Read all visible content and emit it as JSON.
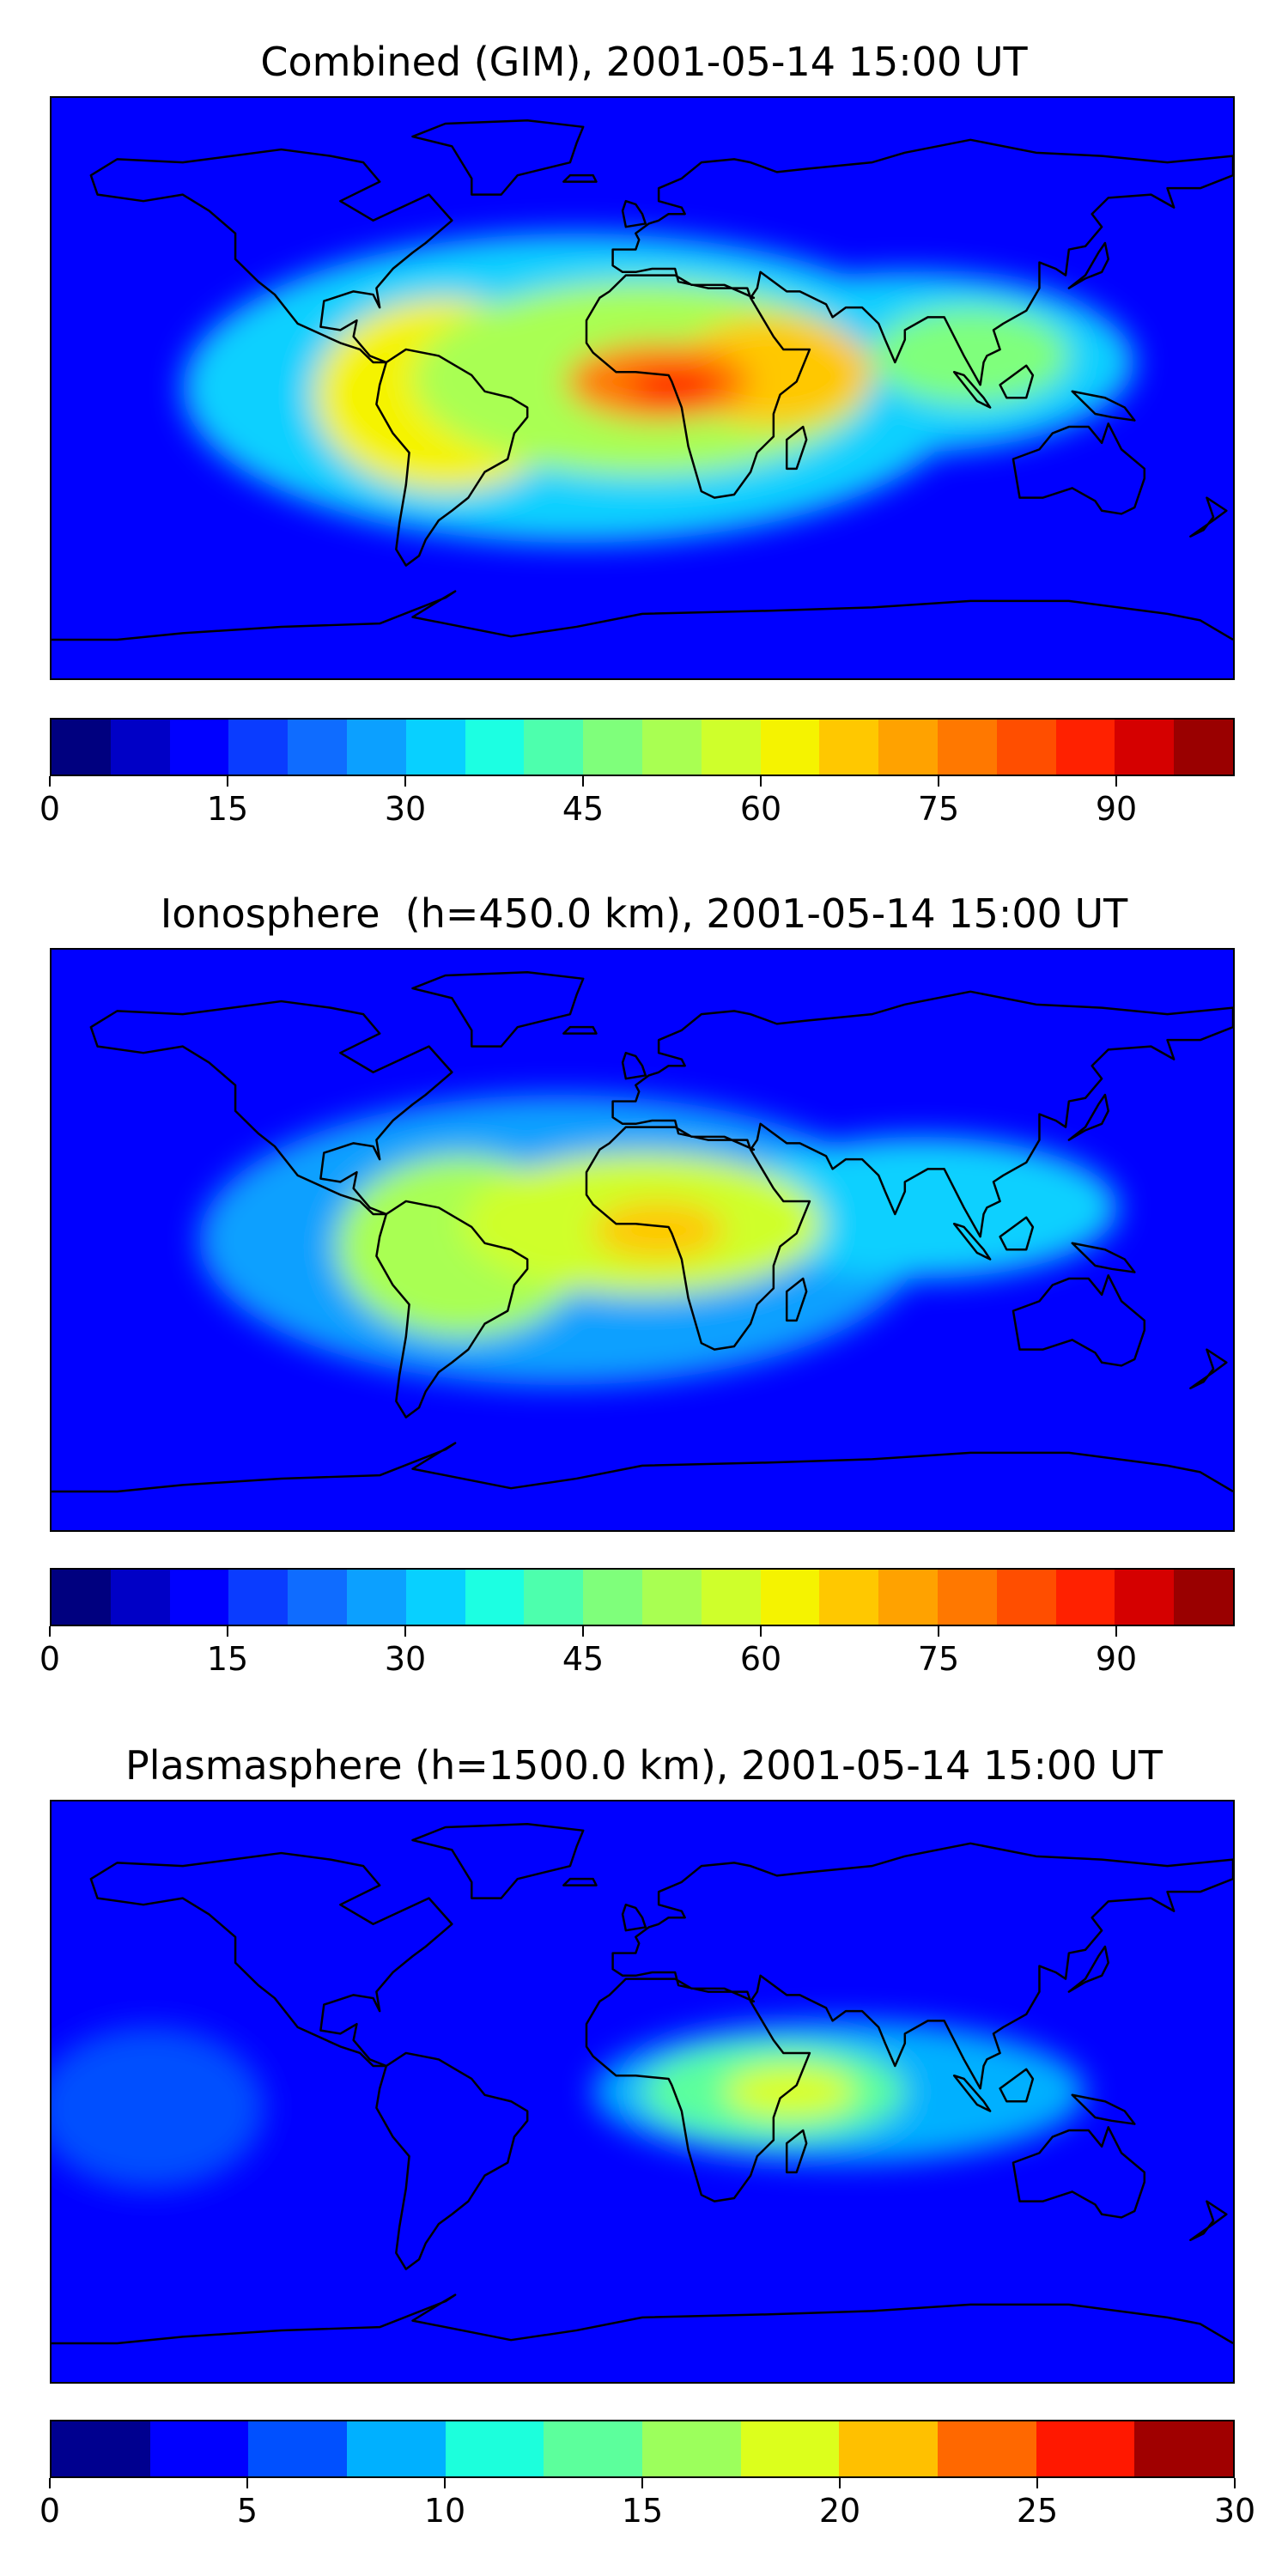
{
  "chart_data": [
    {
      "type": "heatmap",
      "title": "Combined (GIM), 2001-05-14 15:00 UT",
      "colorbar": {
        "min": 0,
        "max": 100,
        "levels": 20,
        "ticks": [
          0,
          15,
          30,
          45,
          60,
          75,
          90
        ]
      },
      "colors": [
        "#00007f",
        "#0000c6",
        "#0000ff",
        "#0a3cff",
        "#0f6cff",
        "#0ca0ff",
        "#08d0ff",
        "#1cffe2",
        "#4dffad",
        "#7fff7b",
        "#a9ff52",
        "#cfff2b",
        "#f5f300",
        "#ffc800",
        "#ffa200",
        "#ff7800",
        "#ff4e00",
        "#ff2100",
        "#d50000",
        "#9a0000"
      ],
      "background_level": 2,
      "blobs": [
        {
          "lon": -20,
          "lat": 0,
          "rlon": 120,
          "rlat": 48,
          "level": 6
        },
        {
          "lon": 80,
          "lat": 8,
          "rlon": 70,
          "rlat": 28,
          "level": 6
        },
        {
          "lon": -60,
          "lat": -2,
          "rlon": 40,
          "rlat": 30,
          "level": 12
        },
        {
          "lon": 0,
          "lat": 3,
          "rlon": 70,
          "rlat": 30,
          "level": 10
        },
        {
          "lon": 40,
          "lat": 5,
          "rlon": 30,
          "rlat": 17,
          "level": 13
        },
        {
          "lon": 100,
          "lat": 10,
          "rlon": 30,
          "rlat": 15,
          "level": 9
        },
        {
          "lon": 5,
          "lat": 2,
          "rlon": 28,
          "rlat": 12,
          "level": 15
        },
        {
          "lon": 10,
          "lat": 0,
          "rlon": 14,
          "rlat": 6,
          "level": 17
        }
      ]
    },
    {
      "type": "heatmap",
      "title": "Ionosphere  (h=450.0 km), 2001-05-14 15:00 UT",
      "colorbar": {
        "min": 0,
        "max": 100,
        "levels": 20,
        "ticks": [
          0,
          15,
          30,
          45,
          60,
          75,
          90
        ]
      },
      "colors": [
        "#00007f",
        "#0000c6",
        "#0000ff",
        "#0a3cff",
        "#0f6cff",
        "#0ca0ff",
        "#08d0ff",
        "#1cffe2",
        "#4dffad",
        "#7fff7b",
        "#a9ff52",
        "#cfff2b",
        "#f5f300",
        "#ffc800",
        "#ffa200",
        "#ff7800",
        "#ff4e00",
        "#ff2100",
        "#d50000",
        "#9a0000"
      ],
      "background_level": 2,
      "blobs": [
        {
          "lon": -25,
          "lat": 0,
          "rlon": 110,
          "rlat": 45,
          "level": 5
        },
        {
          "lon": 85,
          "lat": 10,
          "rlon": 60,
          "rlat": 22,
          "level": 6
        },
        {
          "lon": -55,
          "lat": -2,
          "rlon": 38,
          "rlat": 28,
          "level": 10
        },
        {
          "lon": 0,
          "lat": 5,
          "rlon": 55,
          "rlat": 22,
          "level": 11
        },
        {
          "lon": 5,
          "lat": 3,
          "rlon": 20,
          "rlat": 9,
          "level": 13
        }
      ]
    },
    {
      "type": "heatmap",
      "title": "Plasmasphere (h=1500.0 km), 2001-05-14 15:00 UT",
      "colorbar": {
        "min": 0,
        "max": 30,
        "levels": 12,
        "ticks": [
          0,
          5,
          10,
          15,
          20,
          25,
          30
        ]
      },
      "colors": [
        "#00008f",
        "#0000ff",
        "#0050ff",
        "#00b0ff",
        "#1cffdc",
        "#5cff9c",
        "#9cff5c",
        "#dcff1c",
        "#ffc000",
        "#ff6800",
        "#ff1800",
        "#a00000"
      ],
      "background_level": 1,
      "blobs": [
        {
          "lon": -150,
          "lat": -5,
          "rlon": 35,
          "rlat": 25,
          "level": 2
        },
        {
          "lon": 60,
          "lat": 0,
          "rlon": 75,
          "rlat": 22,
          "level": 3
        },
        {
          "lon": 40,
          "lat": 0,
          "rlon": 40,
          "rlat": 15,
          "level": 5
        },
        {
          "lon": 45,
          "lat": 0,
          "rlon": 20,
          "rlat": 8,
          "level": 7
        }
      ]
    }
  ]
}
